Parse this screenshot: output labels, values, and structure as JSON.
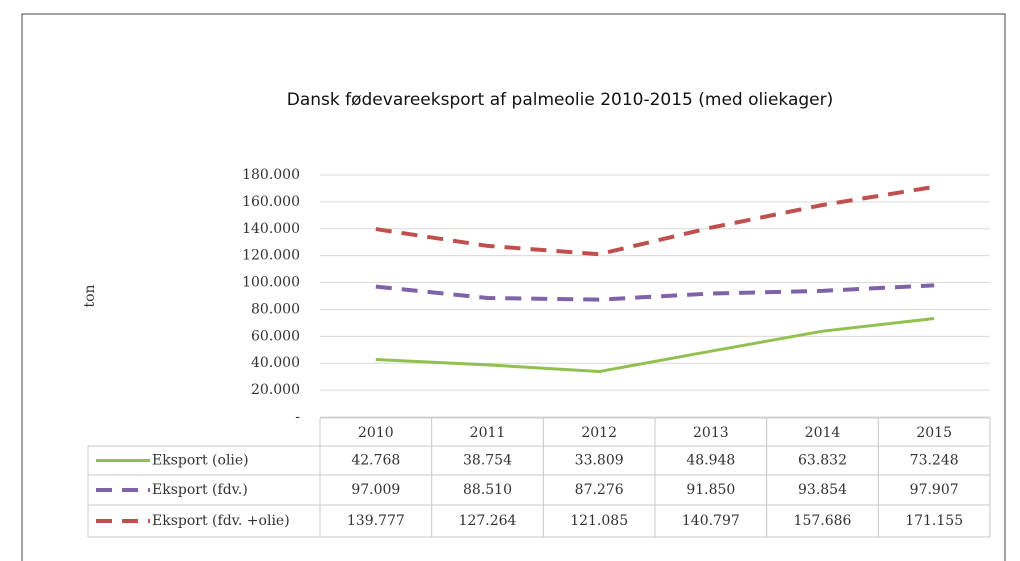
{
  "chart_data": {
    "type": "line",
    "title": "Dansk fødevareeksport af palmeolie 2010-2015 (med oliekager)",
    "ylabel": "ton",
    "categories": [
      "2010",
      "2011",
      "2012",
      "2013",
      "2014",
      "2015"
    ],
    "series": [
      {
        "name": "Eksport (olie)",
        "color": "#92c050",
        "dash": false,
        "values": [
          42768,
          38754,
          33809,
          48948,
          63832,
          73248
        ],
        "value_labels": [
          "42.768",
          "38.754",
          "33.809",
          "48.948",
          "63.832",
          "73.248"
        ]
      },
      {
        "name": "Eksport (fdv.)",
        "color": "#7f62a8",
        "dash": true,
        "values": [
          97009,
          88510,
          87276,
          91850,
          93854,
          97907
        ],
        "value_labels": [
          "97.009",
          "88.510",
          "87.276",
          "91.850",
          "93.854",
          "97.907"
        ]
      },
      {
        "name": "Eksport (fdv. +olie)",
        "color": "#c0504d",
        "dash": true,
        "values": [
          139777,
          127264,
          121085,
          140797,
          157686,
          171155
        ],
        "value_labels": [
          "139.777",
          "127.264",
          "121.085",
          "140.797",
          "157.686",
          "171.155"
        ]
      }
    ],
    "ylim": [
      0,
      180000
    ],
    "yticks": [
      {
        "value": 0,
        "label": "-"
      },
      {
        "value": 20000,
        "label": "20.000"
      },
      {
        "value": 40000,
        "label": "40.000"
      },
      {
        "value": 60000,
        "label": "60.000"
      },
      {
        "value": 80000,
        "label": "80.000"
      },
      {
        "value": 100000,
        "label": "100.000"
      },
      {
        "value": 120000,
        "label": "120.000"
      },
      {
        "value": 140000,
        "label": "140.000"
      },
      {
        "value": 160000,
        "label": "160.000"
      },
      {
        "value": 180000,
        "label": "180.000"
      }
    ],
    "grid": true
  }
}
